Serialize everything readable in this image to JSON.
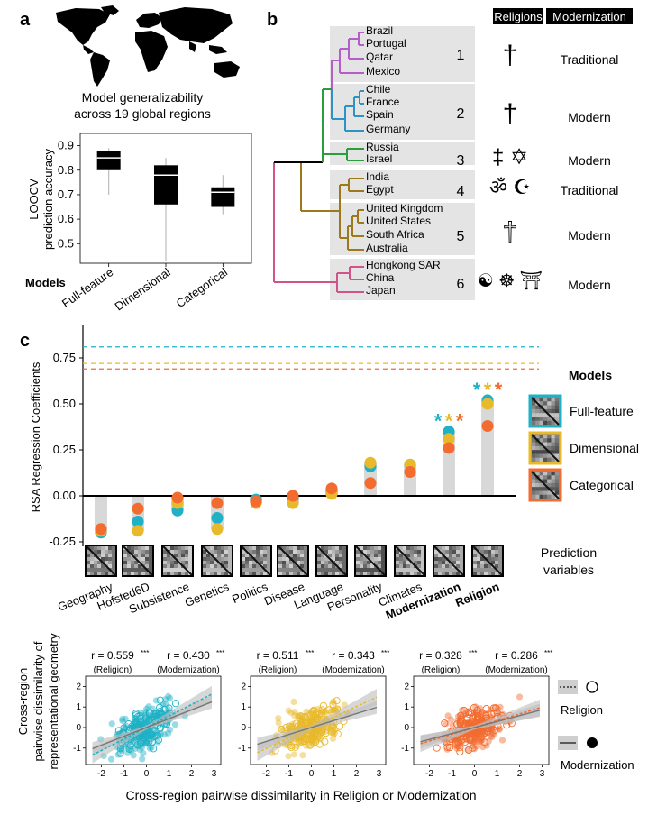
{
  "panel_a": {
    "letter": "a",
    "caption_line1": "Model generalizability",
    "caption_line2": "across 19 global regions",
    "ylabel_line1": "LOOCV",
    "ylabel_line2": "prediction accuracy",
    "xlabel": "Models"
  },
  "panel_b": {
    "letter": "b",
    "header_religions": "Religions",
    "header_modernization": "Modernization",
    "clusters": [
      {
        "num": "1",
        "regions": [
          "Brazil",
          "Portugal",
          "Qatar",
          "Mexico"
        ],
        "modernization": "Traditional",
        "color": "#b25fc7"
      },
      {
        "num": "2",
        "regions": [
          "Chile",
          "France",
          "Spain",
          "Germany"
        ],
        "modernization": "Modern",
        "color": "#2e93c4"
      },
      {
        "num": "3",
        "regions": [
          "Russia",
          "Israel"
        ],
        "modernization": "Modern",
        "color": "#2a9d3c"
      },
      {
        "num": "4",
        "regions": [
          "India",
          "Egypt"
        ],
        "modernization": "Traditional",
        "color": "#9c7a1c"
      },
      {
        "num": "5",
        "regions": [
          "United Kingdom",
          "United States",
          "South Africa",
          "Australia"
        ],
        "modernization": "Modern",
        "color": "#9c7a1c"
      },
      {
        "num": "6",
        "regions": [
          "Hongkong SAR",
          "China",
          "Japan"
        ],
        "modernization": "Modern",
        "color": "#d0548a"
      }
    ],
    "symbols": {
      "c1": "†",
      "c2": "†",
      "c3": "‡ ✡",
      "c4": "ॐ ☪",
      "c5": "†",
      "c6": "☯ ☸ ⛩"
    }
  },
  "panel_c": {
    "letter": "c",
    "models_title": "Models",
    "legend": [
      {
        "name": "Full-feature",
        "color": "#1fb1c6"
      },
      {
        "name": "Dimensional",
        "color": "#e8b92a"
      },
      {
        "name": "Categorical",
        "color": "#f26b2f"
      }
    ],
    "prediction_line1": "Prediction",
    "prediction_line2": "variables",
    "significance": "*"
  },
  "panel_d": {
    "ylabel_line1": "Cross-region",
    "ylabel_line2": "pairwise dissimilarity of",
    "ylabel_line3": "representational geometry",
    "xlabel": "Cross-region pairwise dissimilarity in Religion or Modernization",
    "legend_religion": "Religion",
    "legend_modernization": "Modernization",
    "stats": [
      {
        "r_rel": "r = 0.559",
        "r_mod": "r = 0.430"
      },
      {
        "r_rel": "r = 0.511",
        "r_mod": "r = 0.343"
      },
      {
        "r_rel": "r = 0.328",
        "r_mod": "r = 0.286"
      }
    ],
    "stars": "***",
    "sub_religion": "(Religion)",
    "sub_modernization": "(Modernization)",
    "colors": [
      "#1fb1c6",
      "#e8b92a",
      "#f26b2f"
    ]
  },
  "chart_data": [
    {
      "type": "box",
      "ylabel": "LOOCV prediction accuracy",
      "xlabel": "Models",
      "ylim": [
        0.42,
        0.95
      ],
      "yticks": [
        0.5,
        0.6,
        0.7,
        0.8,
        0.9
      ],
      "categories": [
        "Full-feature",
        "Dimensional",
        "Categorical"
      ],
      "boxes": [
        {
          "min": 0.7,
          "q1": 0.8,
          "median": 0.85,
          "q3": 0.88,
          "max": 0.89
        },
        {
          "min": 0.43,
          "q1": 0.66,
          "median": 0.78,
          "q3": 0.82,
          "max": 0.85
        },
        {
          "min": 0.62,
          "q1": 0.65,
          "median": 0.71,
          "q3": 0.73,
          "max": 0.78
        }
      ]
    },
    {
      "type": "scatter",
      "ylabel": "RSA Regression Coefficients",
      "ylim": [
        -0.3,
        0.85
      ],
      "yticks": [
        -0.25,
        0.0,
        0.25,
        0.5,
        0.75
      ],
      "categories": [
        "Geography",
        "Hofsted6D",
        "Subsistence",
        "Genetics",
        "Politics",
        "Disease",
        "Language",
        "Personality",
        "Climates",
        "Modernization",
        "Religion"
      ],
      "bold_categories": [
        "Modernization",
        "Religion"
      ],
      "series": [
        {
          "name": "Full-feature",
          "values": [
            -0.2,
            -0.14,
            -0.08,
            -0.12,
            -0.02,
            -0.01,
            0.02,
            0.16,
            0.17,
            0.35,
            0.52
          ],
          "ceiling": 0.81
        },
        {
          "name": "Dimensional",
          "values": [
            -0.19,
            -0.19,
            -0.04,
            -0.18,
            -0.04,
            -0.04,
            0.01,
            0.18,
            0.17,
            0.31,
            0.5
          ],
          "ceiling": 0.72
        },
        {
          "name": "Categorical",
          "values": [
            -0.18,
            -0.07,
            -0.01,
            -0.04,
            -0.03,
            0.0,
            0.04,
            0.07,
            0.13,
            0.26,
            0.38
          ],
          "ceiling": 0.69
        }
      ],
      "significant_categories": [
        "Modernization",
        "Religion"
      ]
    },
    {
      "type": "scatter",
      "xlim": [
        -2.7,
        3.3
      ],
      "ylim": [
        -1.8,
        2.5
      ],
      "xticks": [
        -2,
        -1,
        0,
        1,
        2,
        3
      ],
      "yticks": [
        -1,
        0,
        1,
        2
      ],
      "panels": [
        {
          "model": "Full-feature",
          "religion_slope": 0.56,
          "modernization_slope": 0.43
        },
        {
          "model": "Dimensional",
          "religion_slope": 0.51,
          "modernization_slope": 0.34
        },
        {
          "model": "Categorical",
          "religion_slope": 0.33,
          "modernization_slope": 0.29
        }
      ]
    }
  ]
}
